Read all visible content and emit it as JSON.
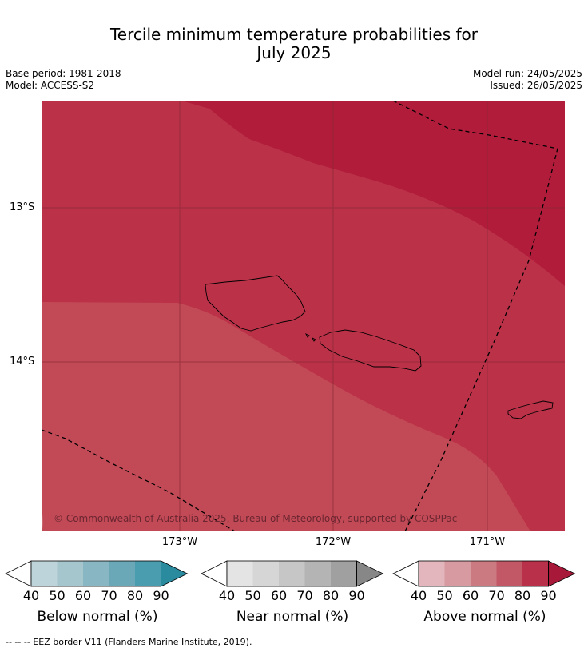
{
  "title": {
    "line1": "Tercile minimum temperature probabilities for",
    "line2": "July 2025"
  },
  "meta_left": {
    "base_period": "Base period: 1981-2018",
    "model": "Model: ACCESS-S2"
  },
  "meta_right": {
    "model_run": "Model run: 24/05/2025",
    "issued": "Issued: 26/05/2025"
  },
  "map": {
    "lat_labels": [
      "13°S",
      "14°S"
    ],
    "lon_labels": [
      "173°W",
      "172°W",
      "171°W"
    ],
    "copyright": "© Commonwealth of Australia 2025, Bureau of Meteorology, supported by COSPPac",
    "colors": {
      "above_90": "#b01c3a",
      "above_80": "#bb3148",
      "above_70": "#c24a56",
      "above_60": "#cb6a76"
    }
  },
  "colorbars": [
    {
      "name": "below",
      "title": "Below normal (%)",
      "ticks": [
        "40",
        "50",
        "60",
        "70",
        "80",
        "90"
      ],
      "colors": [
        "#ffffff",
        "#bdd4da",
        "#a5c6cc",
        "#88b6c2",
        "#6aa8b8",
        "#4a9daf",
        "#2a8b9f"
      ]
    },
    {
      "name": "near",
      "title": "Near normal (%)",
      "ticks": [
        "40",
        "50",
        "60",
        "70",
        "80",
        "90"
      ],
      "colors": [
        "#ffffff",
        "#e4e4e4",
        "#d6d6d6",
        "#c6c6c6",
        "#b4b4b4",
        "#a0a0a0",
        "#878787"
      ]
    },
    {
      "name": "above",
      "title": "Above normal (%)",
      "ticks": [
        "40",
        "50",
        "60",
        "70",
        "80",
        "90"
      ],
      "colors": [
        "#ffffff",
        "#e2b6bc",
        "#d69aa0",
        "#cc7a82",
        "#c25866",
        "#b8304a",
        "#a81838"
      ]
    }
  ],
  "footnote": "--  --  -- EEZ border V11 (Flanders Marine Institute, 2019)."
}
